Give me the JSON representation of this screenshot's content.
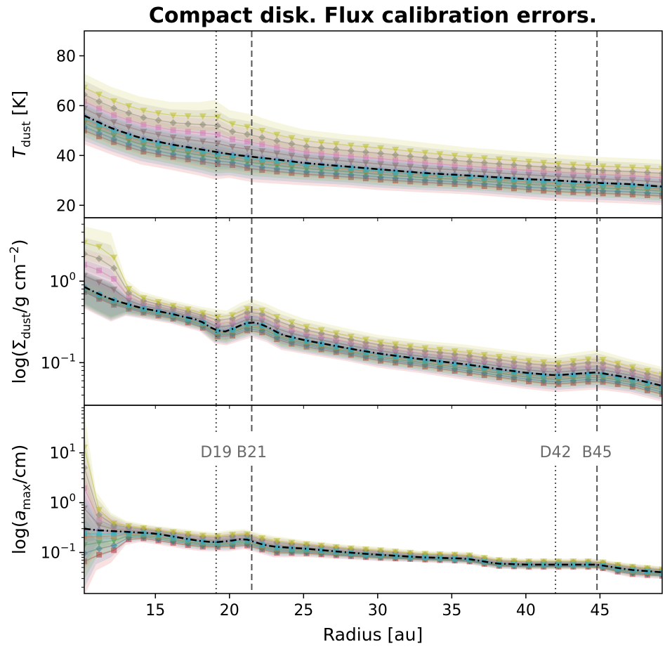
{
  "chart_data": {
    "type": "line",
    "title": "Compact disk. Flux calibration errors.",
    "xlabel": "Radius [au]",
    "xlim": [
      10.2,
      49.2
    ],
    "x_ticks": [
      15,
      20,
      25,
      30,
      35,
      40,
      45
    ],
    "x_tick_labels": [
      "15",
      "20",
      "25",
      "30",
      "35",
      "40",
      "45"
    ],
    "rings": [
      {
        "label": "D19",
        "x": 19.1,
        "linestyle": "dotted"
      },
      {
        "label": "B21",
        "x": 21.5,
        "linestyle": "dashed"
      },
      {
        "label": "D42",
        "x": 42.0,
        "linestyle": "dotted"
      },
      {
        "label": "B45",
        "x": 44.8,
        "linestyle": "dashed"
      }
    ],
    "fiducial_style": "black dash-dot line",
    "palette": [
      "#d62728",
      "#1f77b4",
      "#2ca02c",
      "#ff7f0e",
      "#9467bd",
      "#8c564b",
      "#e377c2",
      "#7f7f7f",
      "#bcbd22",
      "#17becf"
    ],
    "panels": [
      {
        "ylabel_parts": [
          "T",
          "dust",
          " [K]"
        ],
        "scale": "linear",
        "ylim": [
          15,
          90
        ],
        "y_ticks": [
          20,
          40,
          60,
          80
        ],
        "y_tick_labels": [
          "20",
          "40",
          "60",
          "80"
        ],
        "radius": [
          10.2,
          12,
          14,
          16,
          18,
          19,
          20,
          21.5,
          23,
          25,
          28,
          30,
          33,
          36,
          40,
          42,
          44.8,
          47,
          49.2
        ],
        "fiducial": [
          56,
          51,
          47,
          44.5,
          42.5,
          41.5,
          40.5,
          39.5,
          38.5,
          37,
          35.5,
          34.5,
          33,
          32,
          30.5,
          30,
          29,
          28.5,
          27.5
        ],
        "ensemble_low": [
          48,
          44,
          40,
          38,
          36,
          35,
          35,
          33,
          32,
          31,
          30,
          29,
          28,
          27,
          25,
          24,
          23.5,
          23,
          22.5
        ],
        "ensemble_high": [
          71,
          66,
          62,
          60,
          60,
          61,
          57,
          55,
          52,
          49,
          47,
          46,
          44,
          42,
          40,
          39,
          38,
          37.5,
          37
        ]
      },
      {
        "ylabel_parts": [
          "log(Σ",
          "dust",
          "/g cm",
          "−2",
          ")"
        ],
        "scale": "log",
        "ylim": [
          0.03,
          6.0
        ],
        "y_ticks": [
          0.1,
          1.0
        ],
        "y_tick_labels": [
          [
            "10",
            "−1"
          ],
          [
            "10",
            "0"
          ]
        ],
        "radius": [
          10.2,
          11,
          12,
          13,
          14,
          16,
          18,
          19,
          19.8,
          20.8,
          21.5,
          22.5,
          23.5,
          25,
          28,
          30,
          33,
          36,
          40,
          42,
          44.8,
          47,
          49.2
        ],
        "fiducial": [
          0.85,
          0.72,
          0.6,
          0.53,
          0.47,
          0.4,
          0.33,
          0.25,
          0.24,
          0.29,
          0.32,
          0.28,
          0.22,
          0.19,
          0.15,
          0.13,
          0.11,
          0.095,
          0.075,
          0.07,
          0.076,
          0.065,
          0.052
        ],
        "ensemble_low": [
          0.7,
          0.6,
          0.5,
          0.45,
          0.4,
          0.34,
          0.27,
          0.2,
          0.19,
          0.22,
          0.24,
          0.21,
          0.17,
          0.15,
          0.12,
          0.1,
          0.085,
          0.07,
          0.055,
          0.05,
          0.055,
          0.048,
          0.038
        ],
        "ensemble_high": [
          4.5,
          4.2,
          3.8,
          1.0,
          0.7,
          0.55,
          0.45,
          0.42,
          0.4,
          0.5,
          0.55,
          0.48,
          0.4,
          0.32,
          0.24,
          0.2,
          0.17,
          0.15,
          0.12,
          0.11,
          0.13,
          0.1,
          0.08
        ]
      },
      {
        "ylabel_parts": [
          "log(",
          "a",
          "max",
          "/cm)"
        ],
        "scale": "log",
        "ylim": [
          0.015,
          90
        ],
        "y_ticks": [
          0.1,
          1.0,
          10.0
        ],
        "y_tick_labels": [
          [
            "10",
            "−1"
          ],
          [
            "10",
            "0"
          ],
          [
            "10",
            "1"
          ]
        ],
        "radius": [
          10.2,
          11,
          12,
          13,
          14,
          15,
          17,
          18,
          19,
          20,
          21,
          21.5,
          22,
          23,
          25,
          28,
          30,
          33,
          36,
          38,
          40,
          42,
          44.8,
          46,
          47,
          49.2
        ],
        "fiducial": [
          0.3,
          0.28,
          0.27,
          0.26,
          0.25,
          0.24,
          0.19,
          0.17,
          0.16,
          0.17,
          0.19,
          0.17,
          0.15,
          0.13,
          0.12,
          0.1,
          0.09,
          0.08,
          0.075,
          0.06,
          0.057,
          0.057,
          0.057,
          0.05,
          0.045,
          0.04
        ],
        "ensemble_low": [
          0.04,
          0.06,
          0.07,
          0.16,
          0.18,
          0.16,
          0.13,
          0.12,
          0.12,
          0.12,
          0.13,
          0.12,
          0.11,
          0.09,
          0.09,
          0.08,
          0.075,
          0.07,
          0.065,
          0.052,
          0.05,
          0.05,
          0.05,
          0.04,
          0.035,
          0.032
        ],
        "ensemble_high": [
          45,
          1.2,
          0.45,
          0.38,
          0.34,
          0.3,
          0.26,
          0.24,
          0.23,
          0.25,
          0.26,
          0.24,
          0.22,
          0.19,
          0.16,
          0.13,
          0.12,
          0.1,
          0.095,
          0.075,
          0.07,
          0.07,
          0.07,
          0.06,
          0.055,
          0.048
        ]
      }
    ]
  }
}
